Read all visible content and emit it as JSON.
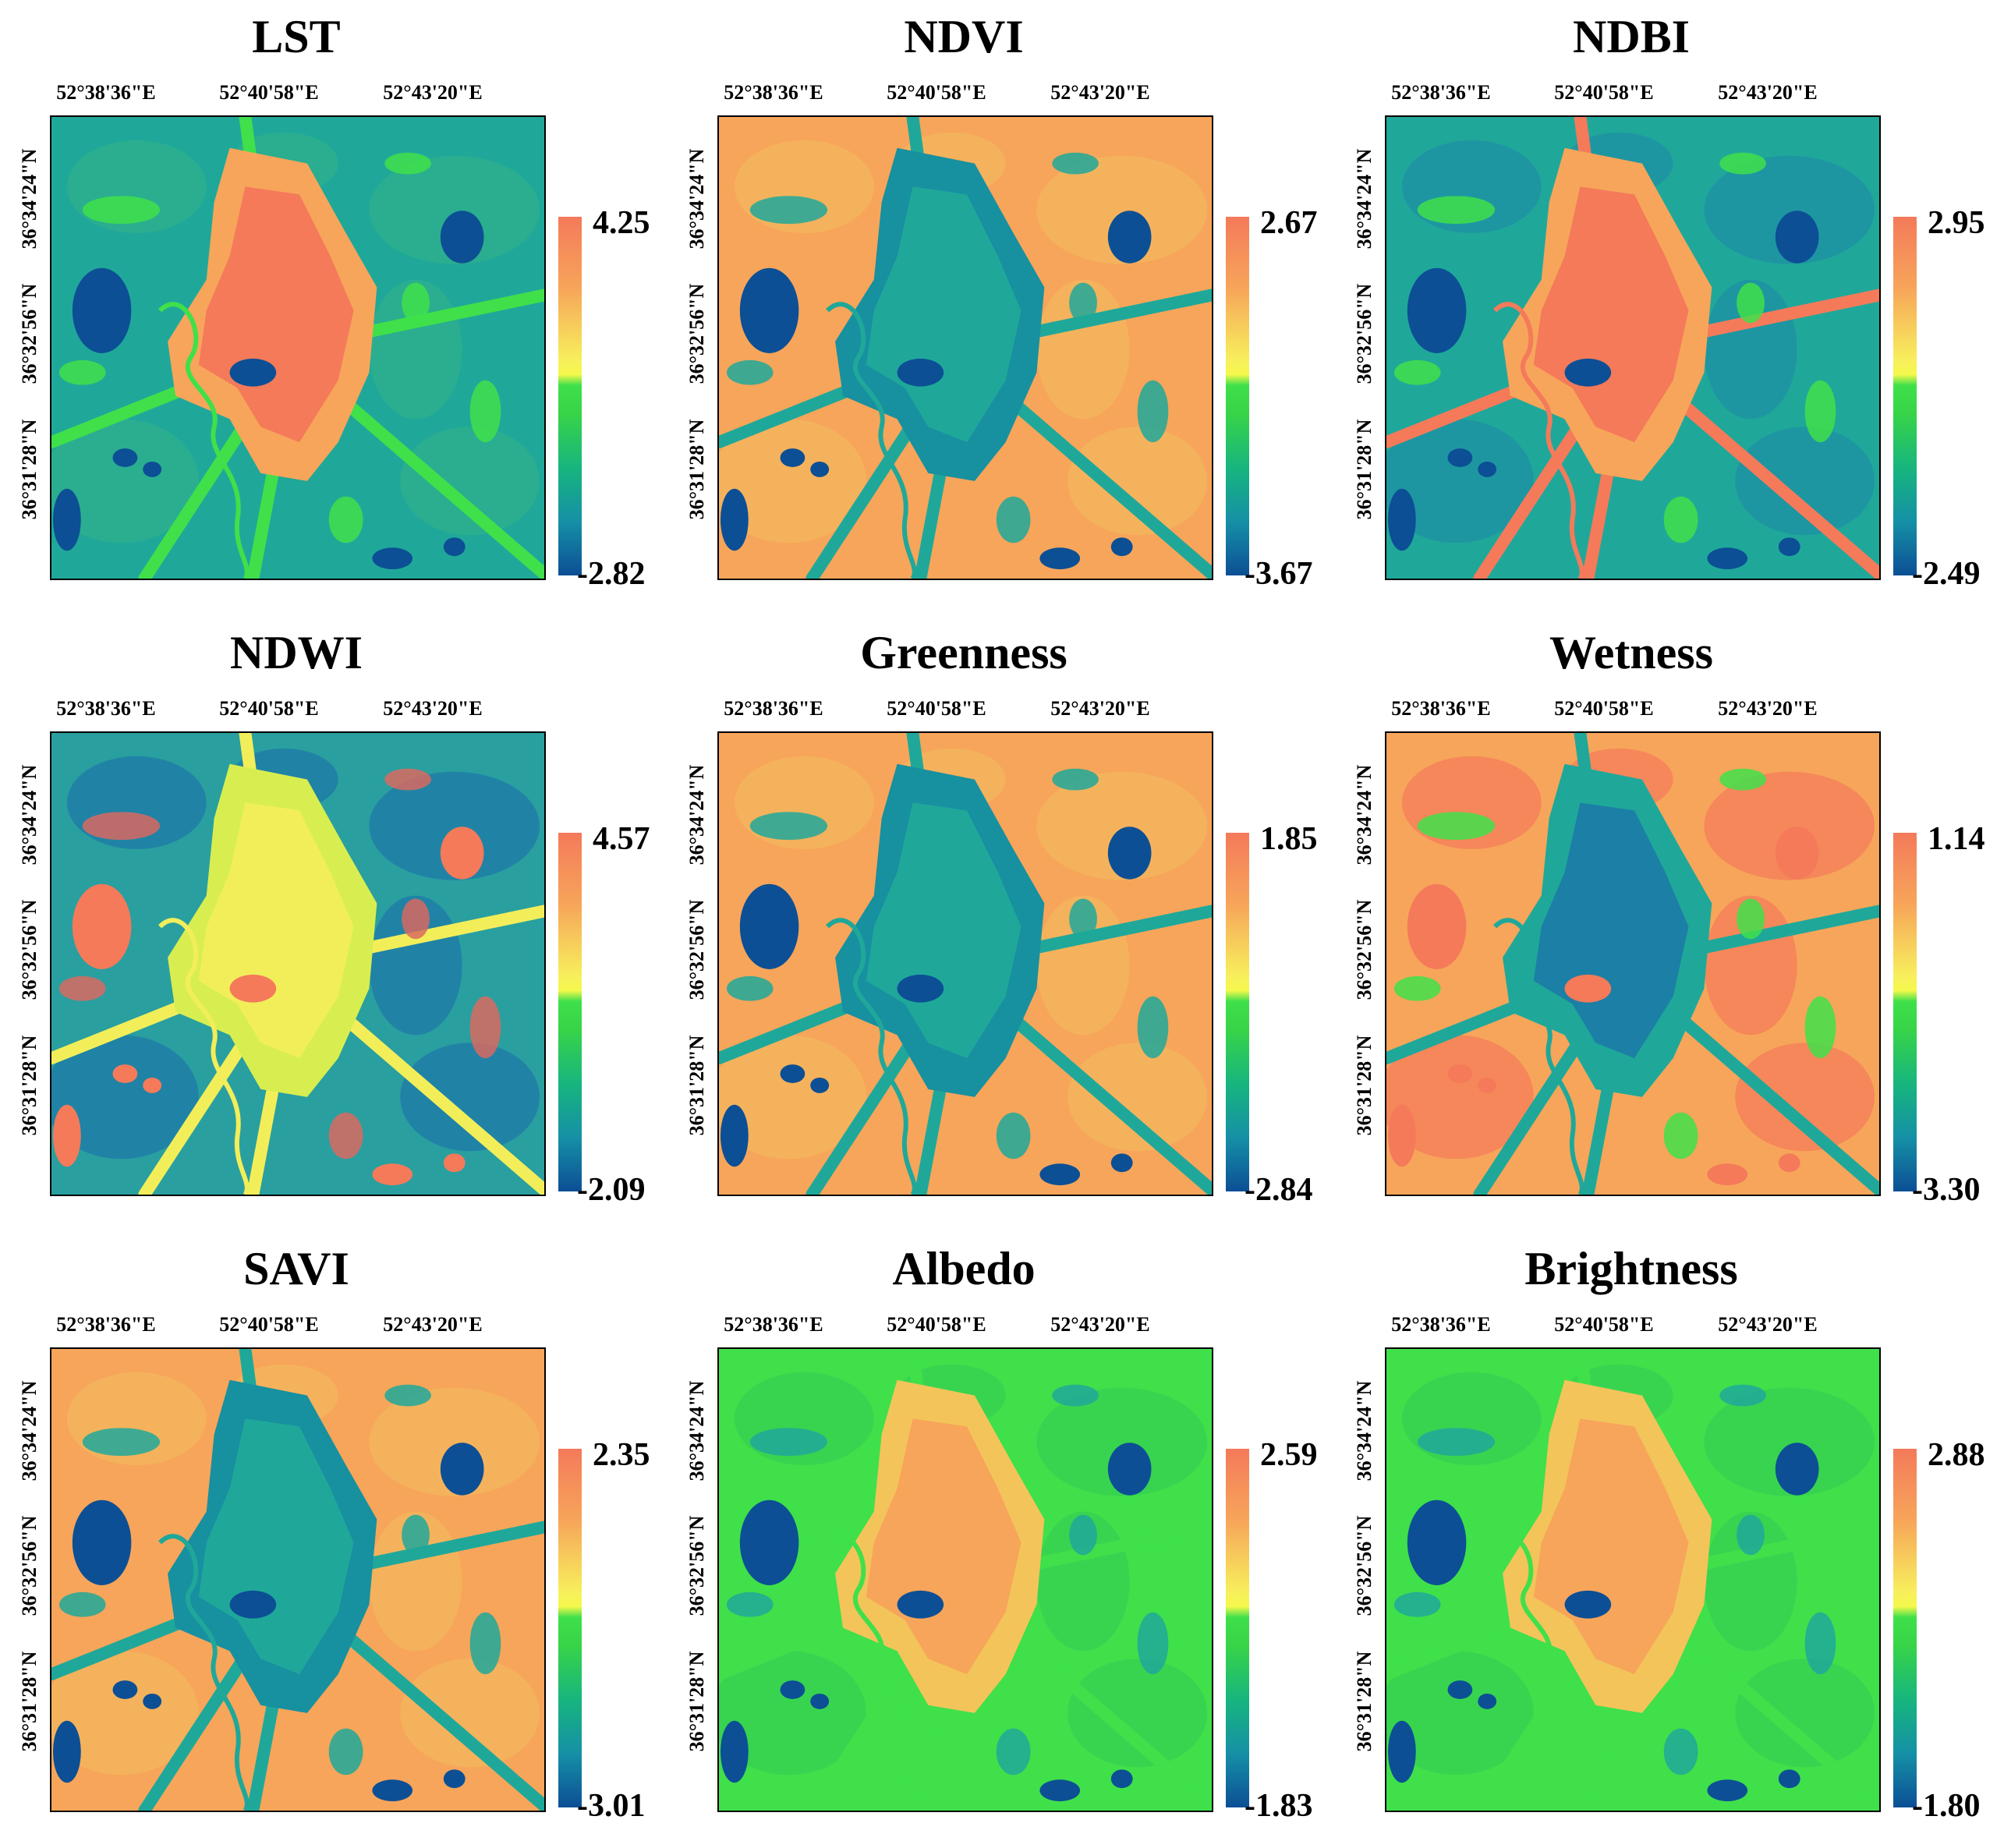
{
  "figure": {
    "longitude_labels": [
      "52°38'36\"E",
      "52°40'58\"E",
      "52°43'20\"E"
    ],
    "latitude_labels": [
      "36°34'24\"N",
      "36°32'56\"N",
      "36°31'28\"N"
    ],
    "panels": [
      {
        "title": "LST",
        "max": "4.25",
        "min": "-2.82",
        "style": "lst"
      },
      {
        "title": "NDVI",
        "max": "2.67",
        "min": "-3.67",
        "style": "veg"
      },
      {
        "title": "NDBI",
        "max": "2.95",
        "min": "-2.49",
        "style": "built"
      },
      {
        "title": "NDWI",
        "max": "4.57",
        "min": "-2.09",
        "style": "water"
      },
      {
        "title": "Greenness",
        "max": "1.85",
        "min": "-2.84",
        "style": "veg"
      },
      {
        "title": "Wetness",
        "max": "1.14",
        "min": "-3.30",
        "style": "wet"
      },
      {
        "title": "SAVI",
        "max": "2.35",
        "min": "-3.01",
        "style": "veg"
      },
      {
        "title": "Albedo",
        "max": "2.59",
        "min": "-1.83",
        "style": "albedo"
      },
      {
        "title": "Brightness",
        "max": "2.88",
        "min": "-1.80",
        "style": "albedo"
      }
    ]
  },
  "colors": {
    "red": "#f47a5a",
    "orange": "#f7a55a",
    "yellow": "#f2ee5a",
    "green": "#3fe04a",
    "teal": "#1fa89a",
    "blue": "#0c4f95"
  }
}
